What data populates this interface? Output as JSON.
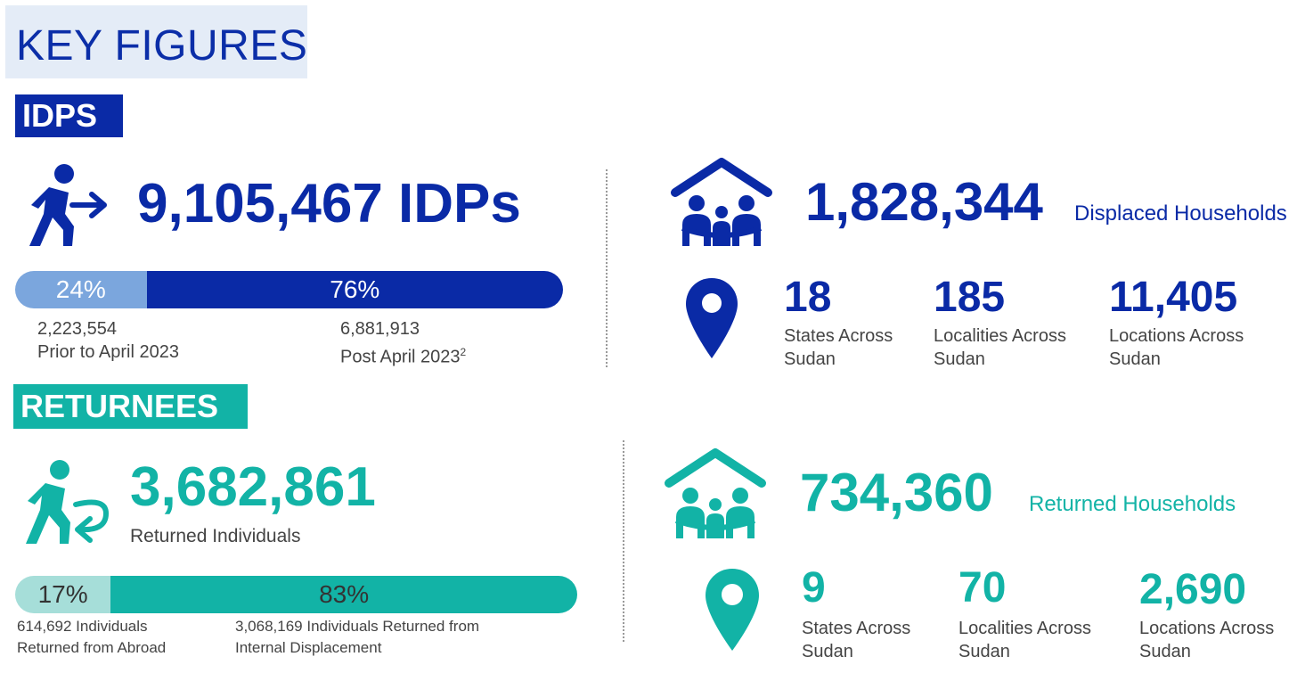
{
  "title": "KEY FIGURES",
  "colors": {
    "blue": "#0a2aa6",
    "blue_light": "#7ba6dd",
    "teal": "#12b3a6",
    "teal_light": "#a6ded9",
    "title_bg": "#e4ecf7"
  },
  "idps": {
    "tag": "IDPS",
    "total": "9,105,467 IDPs",
    "bar": {
      "left_pct_label": "24%",
      "left_fraction": 0.24,
      "right_pct_label": "76%",
      "right_fraction": 0.76
    },
    "prior_value": "2,223,554",
    "prior_label": "Prior to April 2023",
    "post_value": "6,881,913",
    "post_label": "Post April 2023",
    "post_footnote": "2",
    "households_value": "1,828,344",
    "households_label": "Displaced Households",
    "states_value": "18",
    "states_label_1": "States Across",
    "states_label_2": "Sudan",
    "localities_value": "185",
    "localities_label_1": "Localities Across",
    "localities_label_2": "Sudan",
    "locations_value": "11,405",
    "locations_label_1": "Locations Across",
    "locations_label_2": "Sudan"
  },
  "returnees": {
    "tag": "RETURNEES",
    "total": "3,682,861",
    "total_label": "Returned Individuals",
    "bar": {
      "left_pct_label": "17%",
      "left_fraction": 0.17,
      "right_pct_label": "83%",
      "right_fraction": 0.83
    },
    "abroad_label_1": "614,692 Individuals",
    "abroad_label_2": "Returned from Abroad",
    "internal_label_1": "3,068,169 Individuals Returned from",
    "internal_label_2": "Internal Displacement",
    "households_value": "734,360",
    "households_label": "Returned Households",
    "states_value": "9",
    "states_label_1": "States Across",
    "states_label_2": "Sudan",
    "localities_value": "70",
    "localities_label_1": "Localities Across",
    "localities_label_2": "Sudan",
    "locations_value": "2,690",
    "locations_label_1": "Locations Across",
    "locations_label_2": "Sudan"
  },
  "icons": [
    "walking-person-arrow-icon",
    "house-family-icon",
    "location-pin-icon",
    "returning-person-icon"
  ]
}
